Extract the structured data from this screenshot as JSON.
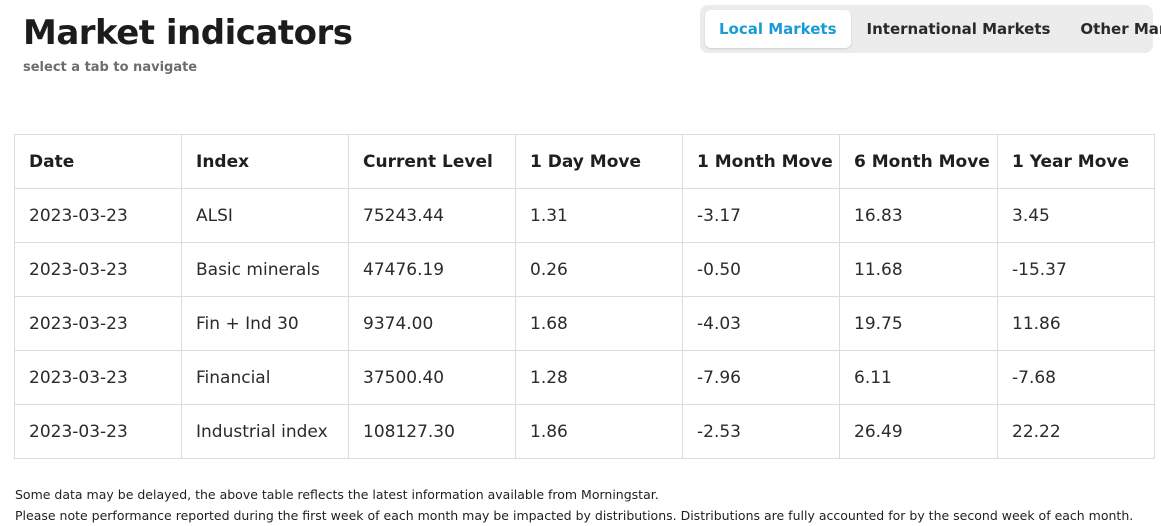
{
  "header": {
    "title": "Market indicators",
    "subtitle": "select a tab to navigate"
  },
  "tabs": [
    {
      "label": "Local Markets",
      "active": true
    },
    {
      "label": "International Markets",
      "active": false
    },
    {
      "label": "Other Markets",
      "active": false
    }
  ],
  "colors": {
    "accent": "#1a9bd7",
    "tab_bar_bg": "#ececec",
    "border": "#dcdcdc"
  },
  "table": {
    "columns": [
      "Date",
      "Index",
      "Current Level",
      "1 Day Move",
      "1 Month Move",
      "6 Month Move",
      "1 Year Move"
    ],
    "rows": [
      [
        "2023-03-23",
        "ALSI",
        "75243.44",
        "1.31",
        "-3.17",
        "16.83",
        "3.45"
      ],
      [
        "2023-03-23",
        "Basic minerals",
        "47476.19",
        "0.26",
        "-0.50",
        "11.68",
        "-15.37"
      ],
      [
        "2023-03-23",
        "Fin + Ind 30",
        "9374.00",
        "1.68",
        "-4.03",
        "19.75",
        "11.86"
      ],
      [
        "2023-03-23",
        "Financial",
        "37500.40",
        "1.28",
        "-7.96",
        "6.11",
        "-7.68"
      ],
      [
        "2023-03-23",
        "Industrial index",
        "108127.30",
        "1.86",
        "-2.53",
        "26.49",
        "22.22"
      ]
    ]
  },
  "footnotes": [
    "Some data may be delayed, the above table reflects the latest information available from Morningstar.",
    "Please note performance reported during the first week of each month may be impacted by distributions. Distributions are fully accounted for by the second week of each month."
  ]
}
